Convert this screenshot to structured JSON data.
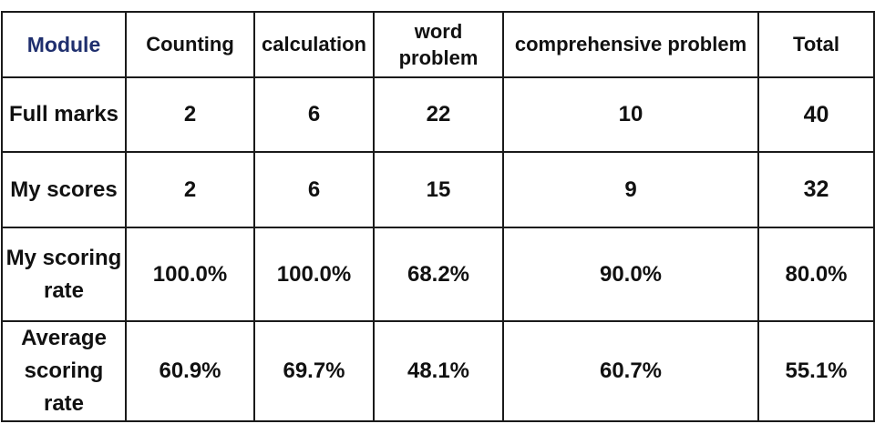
{
  "chart_data": {
    "type": "table",
    "columns": [
      "Module",
      "Counting",
      "calculation",
      "word problem",
      "comprehensive problem",
      "Total"
    ],
    "rows": [
      {
        "label": "Full marks",
        "values": [
          "2",
          "6",
          "22",
          "10",
          "40"
        ]
      },
      {
        "label": "My scores",
        "values": [
          "2",
          "6",
          "15",
          "9",
          "32"
        ]
      },
      {
        "label": "My scoring rate",
        "values": [
          "100.0%",
          "100.0%",
          "68.2%",
          "90.0%",
          "80.0%"
        ]
      },
      {
        "label": "Average scoring rate",
        "values": [
          "60.9%",
          "69.7%",
          "48.1%",
          "60.7%",
          "55.1%"
        ]
      }
    ]
  },
  "colors": {
    "module_header": "#1f2f6e",
    "text": "#111111",
    "border": "#1a1a1a"
  }
}
